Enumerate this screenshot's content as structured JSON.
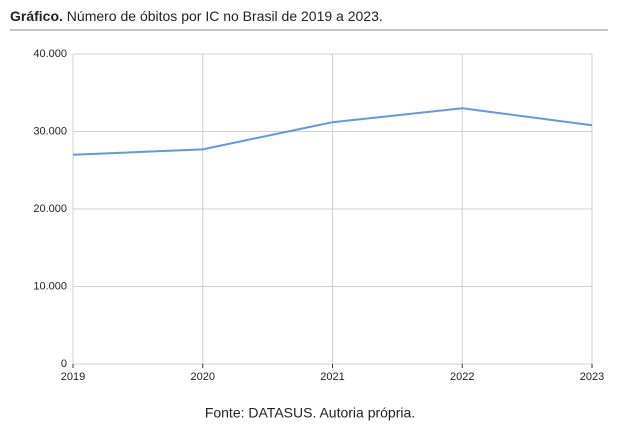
{
  "chart_data": {
    "type": "line",
    "label": "Gráfico.",
    "title": "Número de óbitos por IC no Brasil de 2019 a 2023.",
    "caption": "Fonte: DATASUS. Autoria própria.",
    "x": [
      2019,
      2020,
      2021,
      2022,
      2023
    ],
    "series": [
      {
        "color": "#6495ed",
        "values": [
          27000,
          27700,
          31200,
          33000,
          30800
        ]
      }
    ],
    "xlim": [
      2019,
      2023
    ],
    "xticks": [
      2019,
      2020,
      2021,
      2022,
      2023
    ],
    "ylim": [
      0,
      40000
    ],
    "yticks": [
      0,
      {
        "value": 10000,
        "label": "10.000"
      },
      {
        "value": 20000,
        "label": "20.000"
      },
      {
        "value": 30000,
        "label": "30.000"
      },
      {
        "value": 40000,
        "label": "40.000"
      }
    ],
    "grid": true
  }
}
